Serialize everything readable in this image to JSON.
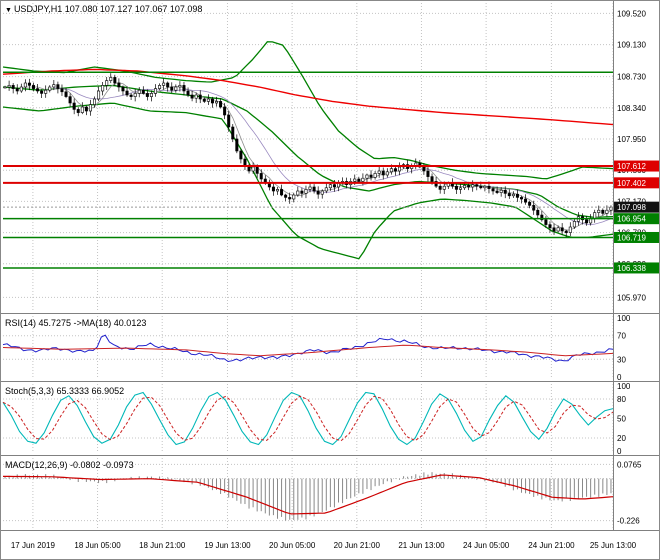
{
  "icons": {
    "symbol_marker": "▼"
  },
  "titles": {
    "main": "USDJPY,H1 107.080 107.127 107.067 107.098",
    "rsi": "RSI(14) 45.7275 ->MA(18) 40.0123",
    "stoch": "Stoch(5,3,3) 65.3333 66.9052",
    "macd": "MACD(12,26,9) -0.0802 -0.0973"
  },
  "colors": {
    "bull": "#ffffff",
    "bear": "#000000",
    "wick": "#000000",
    "bollinger": "#008000",
    "ma_red": "#ee0000",
    "level_red": "#dd0000",
    "level_green": "#008000",
    "grid": "#c4c4c4",
    "separator": "#808080",
    "rsi_line": "#2222cc",
    "rsi_ma": "#cc2222",
    "stoch_k": "#00b8b8",
    "stoch_d": "#cc2222",
    "macd_hist": "#888888",
    "macd_signal": "#cc0000",
    "tag_black": "#111111",
    "text": "#000000"
  },
  "time_axis": {
    "labels": [
      "17 Jun 2019",
      "18 Jun 05:00",
      "18 Jun 21:00",
      "19 Jun 13:00",
      "20 Jun 05:00",
      "20 Jun 21:00",
      "21 Jun 13:00",
      "24 Jun 05:00",
      "24 Jun 21:00",
      "25 Jun 13:00"
    ],
    "fracs": [
      0.049,
      0.155,
      0.261,
      0.368,
      0.474,
      0.58,
      0.686,
      0.792,
      0.899,
      1.0
    ]
  },
  "chart_data": [
    {
      "type": "candlestick",
      "title": "USDJPY,H1",
      "timeframe": "H1",
      "ohlc": {
        "open": 107.08,
        "high": 107.127,
        "low": 107.067,
        "close": 107.098
      },
      "ylim": [
        105.8,
        109.65
      ],
      "y_ticks": [
        "109.520",
        "109.130",
        "108.730",
        "108.340",
        "107.950",
        "107.560",
        "107.170",
        "106.780",
        "106.390",
        "105.970"
      ],
      "closes": [
        108.6,
        108.62,
        108.58,
        108.55,
        108.6,
        108.65,
        108.62,
        108.58,
        108.55,
        108.52,
        108.56,
        108.6,
        108.63,
        108.58,
        108.54,
        108.48,
        108.4,
        108.32,
        108.28,
        108.35,
        108.3,
        108.38,
        108.45,
        108.55,
        108.62,
        108.68,
        108.72,
        108.65,
        108.6,
        108.55,
        108.5,
        108.48,
        108.52,
        108.56,
        108.52,
        108.48,
        108.52,
        108.58,
        108.62,
        108.65,
        108.6,
        108.56,
        108.6,
        108.62,
        108.55,
        108.5,
        108.46,
        108.5,
        108.45,
        108.42,
        108.45,
        108.4,
        108.42,
        108.35,
        108.25,
        108.1,
        107.95,
        107.8,
        107.7,
        107.62,
        107.55,
        107.6,
        107.52,
        107.45,
        107.4,
        107.35,
        107.3,
        107.32,
        107.25,
        107.22,
        107.2,
        107.25,
        107.3,
        107.27,
        107.32,
        107.35,
        107.3,
        107.26,
        107.3,
        107.34,
        107.38,
        107.35,
        107.4,
        107.42,
        107.38,
        107.42,
        107.45,
        107.42,
        107.46,
        107.5,
        107.47,
        107.52,
        107.55,
        107.5,
        107.54,
        107.58,
        107.55,
        107.6,
        107.63,
        107.58,
        107.62,
        107.65,
        107.6,
        107.55,
        107.48,
        107.42,
        107.36,
        107.32,
        107.36,
        107.4,
        107.36,
        107.32,
        107.34,
        107.37,
        107.35,
        107.38,
        107.36,
        107.34,
        107.36,
        107.33,
        107.3,
        107.28,
        107.31,
        107.27,
        107.24,
        107.26,
        107.22,
        107.2,
        107.16,
        107.12,
        107.06,
        107.0,
        106.94,
        106.88,
        106.84,
        106.8,
        106.84,
        106.8,
        106.78,
        106.85,
        106.92,
        106.98,
        106.94,
        106.9,
        106.96,
        107.03,
        107.06,
        107.02,
        107.06,
        107.098
      ],
      "overlays": {
        "bb_upper": [
          [
            0,
            108.85
          ],
          [
            0.05,
            108.8
          ],
          [
            0.1,
            108.78
          ],
          [
            0.15,
            108.85
          ],
          [
            0.2,
            108.8
          ],
          [
            0.25,
            108.72
          ],
          [
            0.3,
            108.68
          ],
          [
            0.34,
            108.66
          ],
          [
            0.38,
            108.72
          ],
          [
            0.41,
            108.95
          ],
          [
            0.435,
            109.18
          ],
          [
            0.46,
            109.12
          ],
          [
            0.49,
            108.75
          ],
          [
            0.52,
            108.35
          ],
          [
            0.55,
            108.05
          ],
          [
            0.58,
            107.85
          ],
          [
            0.61,
            107.7
          ],
          [
            0.64,
            107.72
          ],
          [
            0.67,
            107.68
          ],
          [
            0.7,
            107.62
          ],
          [
            0.74,
            107.56
          ],
          [
            0.78,
            107.52
          ],
          [
            0.82,
            107.5
          ],
          [
            0.86,
            107.48
          ],
          [
            0.89,
            107.45
          ],
          [
            0.92,
            107.52
          ],
          [
            0.95,
            107.6
          ],
          [
            1,
            107.58
          ]
        ],
        "bb_mid": [
          [
            0,
            108.6
          ],
          [
            0.06,
            108.56
          ],
          [
            0.12,
            108.6
          ],
          [
            0.18,
            108.62
          ],
          [
            0.24,
            108.55
          ],
          [
            0.3,
            108.5
          ],
          [
            0.36,
            108.45
          ],
          [
            0.4,
            108.3
          ],
          [
            0.44,
            108.05
          ],
          [
            0.48,
            107.75
          ],
          [
            0.52,
            107.5
          ],
          [
            0.56,
            107.35
          ],
          [
            0.6,
            107.3
          ],
          [
            0.64,
            107.38
          ],
          [
            0.68,
            107.42
          ],
          [
            0.72,
            107.4
          ],
          [
            0.76,
            107.38
          ],
          [
            0.8,
            107.35
          ],
          [
            0.84,
            107.32
          ],
          [
            0.88,
            107.25
          ],
          [
            0.91,
            107.1
          ],
          [
            0.94,
            107.0
          ],
          [
            0.97,
            106.97
          ],
          [
            1,
            106.98
          ]
        ],
        "bb_lower": [
          [
            0,
            108.35
          ],
          [
            0.06,
            108.3
          ],
          [
            0.12,
            108.36
          ],
          [
            0.18,
            108.4
          ],
          [
            0.24,
            108.3
          ],
          [
            0.3,
            108.28
          ],
          [
            0.36,
            108.2
          ],
          [
            0.4,
            107.7
          ],
          [
            0.44,
            107.1
          ],
          [
            0.48,
            106.75
          ],
          [
            0.52,
            106.58
          ],
          [
            0.56,
            106.5
          ],
          [
            0.585,
            106.45
          ],
          [
            0.61,
            106.8
          ],
          [
            0.64,
            107.05
          ],
          [
            0.68,
            107.15
          ],
          [
            0.72,
            107.2
          ],
          [
            0.76,
            107.18
          ],
          [
            0.8,
            107.15
          ],
          [
            0.84,
            107.1
          ],
          [
            0.87,
            106.95
          ],
          [
            0.9,
            106.8
          ],
          [
            0.93,
            106.72
          ],
          [
            0.96,
            106.72
          ],
          [
            1,
            106.76
          ]
        ],
        "ma_red": [
          [
            0,
            108.76
          ],
          [
            0.08,
            108.8
          ],
          [
            0.15,
            108.82
          ],
          [
            0.22,
            108.8
          ],
          [
            0.3,
            108.74
          ],
          [
            0.36,
            108.68
          ],
          [
            0.42,
            108.6
          ],
          [
            0.48,
            108.5
          ],
          [
            0.54,
            108.42
          ],
          [
            0.6,
            108.36
          ],
          [
            0.66,
            108.32
          ],
          [
            0.72,
            108.28
          ],
          [
            0.78,
            108.25
          ],
          [
            0.84,
            108.22
          ],
          [
            0.9,
            108.19
          ],
          [
            0.95,
            108.16
          ],
          [
            1,
            108.13
          ]
        ]
      },
      "levels": [
        {
          "label": "",
          "value": 108.785,
          "color": "#008000",
          "tag": false
        },
        {
          "label": "107.612",
          "value": 107.612,
          "color": "#dd0000",
          "tag": true
        },
        {
          "label": "107.402",
          "value": 107.402,
          "color": "#dd0000",
          "tag": true
        },
        {
          "label": "106.954",
          "value": 106.954,
          "color": "#008000",
          "tag": true
        },
        {
          "label": "106.719",
          "value": 106.719,
          "color": "#008000",
          "tag": true
        },
        {
          "label": "106.338",
          "value": 106.338,
          "color": "#008000",
          "tag": true
        }
      ],
      "current_price": {
        "label": "107.098",
        "value": 107.098
      }
    },
    {
      "type": "line",
      "name": "RSI",
      "params": "RSI(14) -> MA(18)",
      "values": {
        "rsi": 45.7275,
        "ma": 40.0123
      },
      "ylim": [
        0,
        100
      ],
      "y_ticks": [
        "100",
        "70",
        "30",
        "0"
      ],
      "levels_dotted": [
        70,
        30
      ],
      "rsi_keypoints": [
        [
          0,
          55
        ],
        [
          0.03,
          48
        ],
        [
          0.06,
          44
        ],
        [
          0.09,
          50
        ],
        [
          0.12,
          42
        ],
        [
          0.15,
          46
        ],
        [
          0.165,
          74
        ],
        [
          0.18,
          52
        ],
        [
          0.21,
          48
        ],
        [
          0.24,
          55
        ],
        [
          0.27,
          50
        ],
        [
          0.3,
          42
        ],
        [
          0.33,
          38
        ],
        [
          0.36,
          30
        ],
        [
          0.39,
          28
        ],
        [
          0.42,
          35
        ],
        [
          0.45,
          32
        ],
        [
          0.48,
          40
        ],
        [
          0.51,
          45
        ],
        [
          0.54,
          42
        ],
        [
          0.57,
          48
        ],
        [
          0.6,
          58
        ],
        [
          0.63,
          65
        ],
        [
          0.66,
          60
        ],
        [
          0.69,
          52
        ],
        [
          0.72,
          48
        ],
        [
          0.75,
          50
        ],
        [
          0.78,
          46
        ],
        [
          0.81,
          44
        ],
        [
          0.84,
          40
        ],
        [
          0.87,
          36
        ],
        [
          0.9,
          30
        ],
        [
          0.92,
          28
        ],
        [
          0.94,
          36
        ],
        [
          0.96,
          40
        ],
        [
          0.98,
          43
        ],
        [
          1,
          45.7
        ]
      ],
      "ma_keypoints": [
        [
          0,
          50
        ],
        [
          0.1,
          47
        ],
        [
          0.2,
          49
        ],
        [
          0.3,
          46
        ],
        [
          0.36,
          40
        ],
        [
          0.42,
          36
        ],
        [
          0.5,
          41
        ],
        [
          0.6,
          50
        ],
        [
          0.66,
          54
        ],
        [
          0.72,
          50
        ],
        [
          0.8,
          46
        ],
        [
          0.86,
          42
        ],
        [
          0.92,
          36
        ],
        [
          1,
          40.0
        ]
      ]
    },
    {
      "type": "line",
      "name": "Stochastic",
      "params": "Stoch(5,3,3)",
      "values": {
        "k": 65.3333,
        "d": 66.9052
      },
      "ylim": [
        0,
        100
      ],
      "y_ticks": [
        "100",
        "80",
        "50",
        "20",
        "0"
      ],
      "levels_dotted": [
        80,
        20
      ],
      "k_values": [
        75,
        55,
        30,
        15,
        12,
        28,
        55,
        78,
        85,
        70,
        45,
        22,
        12,
        18,
        40,
        68,
        86,
        90,
        72,
        48,
        25,
        10,
        14,
        35,
        62,
        84,
        90,
        78,
        55,
        30,
        14,
        10,
        25,
        52,
        78,
        90,
        85,
        62,
        35,
        15,
        10,
        22,
        48,
        74,
        90,
        88,
        65,
        38,
        18,
        10,
        20,
        45,
        72,
        88,
        80,
        58,
        32,
        15,
        22,
        48,
        70,
        85,
        75,
        52,
        30,
        18,
        35,
        60,
        80,
        72,
        55,
        40,
        52,
        62,
        65.3
      ]
    },
    {
      "type": "macd",
      "name": "MACD",
      "params": "MACD(12,26,9)",
      "values": {
        "macd": -0.0802,
        "signal": -0.0973
      },
      "ylim": [
        -0.26,
        0.1
      ],
      "y_ticks": [
        "0.0765",
        "-0.226"
      ],
      "tick_values": [
        0.0765,
        -0.226
      ],
      "levels_dotted": [
        0.0765,
        0,
        -0.226
      ],
      "macd_keypoints": [
        [
          0,
          0.01
        ],
        [
          0.04,
          0.02
        ],
        [
          0.08,
          0.015
        ],
        [
          0.12,
          -0.01
        ],
        [
          0.16,
          -0.02
        ],
        [
          0.2,
          0.0
        ],
        [
          0.24,
          0.01
        ],
        [
          0.28,
          -0.005
        ],
        [
          0.32,
          -0.03
        ],
        [
          0.36,
          -0.08
        ],
        [
          0.4,
          -0.15
        ],
        [
          0.44,
          -0.2
        ],
        [
          0.47,
          -0.225
        ],
        [
          0.5,
          -0.21
        ],
        [
          0.53,
          -0.17
        ],
        [
          0.56,
          -0.12
        ],
        [
          0.6,
          -0.06
        ],
        [
          0.63,
          -0.02
        ],
        [
          0.66,
          0.01
        ],
        [
          0.7,
          0.03
        ],
        [
          0.73,
          0.025
        ],
        [
          0.76,
          0.01
        ],
        [
          0.79,
          -0.005
        ],
        [
          0.82,
          -0.03
        ],
        [
          0.85,
          -0.07
        ],
        [
          0.88,
          -0.1
        ],
        [
          0.91,
          -0.12
        ],
        [
          0.94,
          -0.11
        ],
        [
          0.97,
          -0.095
        ],
        [
          1,
          -0.0802
        ]
      ],
      "signal_keypoints": [
        [
          0,
          0.012
        ],
        [
          0.08,
          0.01
        ],
        [
          0.16,
          -0.005
        ],
        [
          0.24,
          0.0
        ],
        [
          0.32,
          -0.02
        ],
        [
          0.4,
          -0.1
        ],
        [
          0.47,
          -0.19
        ],
        [
          0.53,
          -0.185
        ],
        [
          0.6,
          -0.1
        ],
        [
          0.66,
          -0.02
        ],
        [
          0.72,
          0.02
        ],
        [
          0.78,
          0.005
        ],
        [
          0.84,
          -0.04
        ],
        [
          0.9,
          -0.1
        ],
        [
          0.95,
          -0.11
        ],
        [
          1,
          -0.0973
        ]
      ]
    }
  ]
}
